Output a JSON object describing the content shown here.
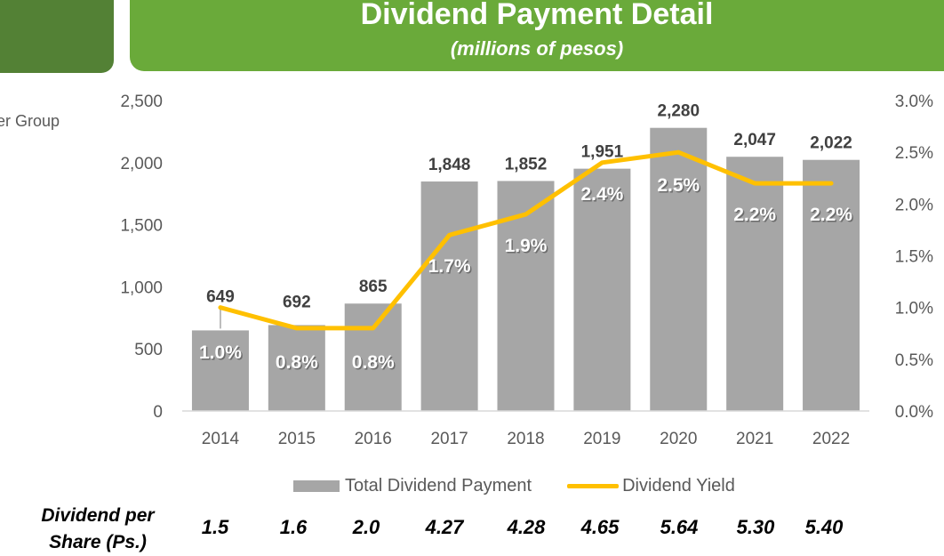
{
  "header": {
    "title": "Dividend Payment Detail",
    "subtitle": "(millions of pesos)"
  },
  "side_label": "er Group",
  "colors": {
    "banner": "#6aaa3a",
    "side_tab": "#538135",
    "bar": "#a6a6a6",
    "line": "#ffc000"
  },
  "chart_data": {
    "type": "bar",
    "title": "Dividend Payment Detail",
    "subtitle": "(millions of pesos)",
    "categories": [
      "2014",
      "2015",
      "2016",
      "2017",
      "2018",
      "2019",
      "2020",
      "2021",
      "2022"
    ],
    "series": [
      {
        "name": "Total Dividend Payment",
        "type": "bar",
        "axis": "left",
        "values": [
          649,
          692,
          865,
          1848,
          1852,
          1951,
          2280,
          2047,
          2022
        ],
        "labels": [
          "649",
          "692",
          "865",
          "1,848",
          "1,852",
          "1,951",
          "2,280",
          "2,047",
          "2,022"
        ]
      },
      {
        "name": "Dividend Yield",
        "type": "line",
        "axis": "right",
        "values": [
          1.0,
          0.8,
          0.8,
          1.7,
          1.9,
          2.4,
          2.5,
          2.2,
          2.2
        ],
        "labels": [
          "1.0%",
          "0.8%",
          "0.8%",
          "1.7%",
          "1.9%",
          "2.4%",
          "2.5%",
          "2.2%",
          "2.2%"
        ]
      }
    ],
    "ylim": [
      0,
      2500
    ],
    "y_ticks": [
      "0",
      "500",
      "1,000",
      "1,500",
      "2,000",
      "2,500"
    ],
    "y2lim": [
      0,
      3.0
    ],
    "y2_ticks": [
      "0.0%",
      "0.5%",
      "1.0%",
      "1.5%",
      "2.0%",
      "2.5%",
      "3.0%"
    ],
    "grid": false,
    "legend": "bottom"
  },
  "dividend_per_share": {
    "label": "Dividend per Share (Ps.)",
    "values": [
      "1.5",
      "1.6",
      "2.0",
      "4.27",
      "4.28",
      "4.65",
      "5.64",
      "5.30",
      "5.40"
    ]
  }
}
